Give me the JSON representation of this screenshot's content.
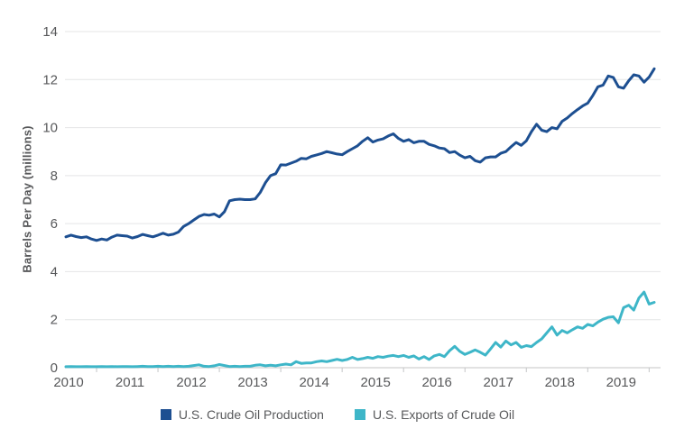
{
  "chart_data": {
    "type": "line",
    "title": "",
    "xlabel": "",
    "ylabel": "Barrels Per Day (millions)",
    "ylim": [
      0,
      14
    ],
    "y_ticks": [
      0,
      2,
      4,
      6,
      8,
      10,
      12,
      14
    ],
    "x_tick_labels": [
      "2010",
      "2011",
      "2012",
      "2013",
      "2014",
      "2015",
      "2016",
      "2017",
      "2018",
      "2019"
    ],
    "x_unit": "month",
    "x_range": "Jan 2010 - Aug 2019",
    "grid": "horizontal",
    "legend_position": "bottom-center",
    "series": [
      {
        "name": "U.S. Crude Oil Production",
        "color": "#1d4f91",
        "values": [
          5.45,
          5.52,
          5.46,
          5.42,
          5.45,
          5.36,
          5.3,
          5.36,
          5.32,
          5.44,
          5.52,
          5.5,
          5.48,
          5.4,
          5.46,
          5.55,
          5.5,
          5.45,
          5.52,
          5.6,
          5.52,
          5.56,
          5.65,
          5.88,
          6.0,
          6.15,
          6.3,
          6.38,
          6.35,
          6.4,
          6.28,
          6.5,
          6.95,
          7.0,
          7.02,
          7.0,
          7.0,
          7.03,
          7.3,
          7.7,
          8.0,
          8.08,
          8.45,
          8.44,
          8.52,
          8.6,
          8.72,
          8.7,
          8.8,
          8.86,
          8.92,
          9.0,
          8.95,
          8.9,
          8.87,
          9.0,
          9.12,
          9.24,
          9.43,
          9.58,
          9.4,
          9.48,
          9.53,
          9.65,
          9.74,
          9.55,
          9.43,
          9.5,
          9.37,
          9.43,
          9.43,
          9.3,
          9.24,
          9.15,
          9.12,
          8.96,
          9.0,
          8.85,
          8.74,
          8.8,
          8.62,
          8.56,
          8.74,
          8.78,
          8.78,
          8.93,
          9.0,
          9.2,
          9.38,
          9.26,
          9.45,
          9.83,
          10.14,
          9.89,
          9.83,
          10.0,
          9.95,
          10.26,
          10.4,
          10.59,
          10.75,
          10.9,
          11.02,
          11.34,
          11.7,
          11.77,
          12.15,
          12.09,
          11.7,
          11.64,
          11.95,
          12.2,
          12.15,
          11.89,
          12.1,
          12.45
        ]
      },
      {
        "name": "U.S. Exports of Crude Oil",
        "color": "#3eb6c8",
        "values": [
          0.04,
          0.05,
          0.04,
          0.04,
          0.05,
          0.04,
          0.04,
          0.05,
          0.04,
          0.05,
          0.04,
          0.05,
          0.05,
          0.04,
          0.05,
          0.06,
          0.05,
          0.05,
          0.06,
          0.05,
          0.06,
          0.05,
          0.06,
          0.05,
          0.06,
          0.09,
          0.12,
          0.06,
          0.05,
          0.08,
          0.13,
          0.09,
          0.05,
          0.06,
          0.05,
          0.06,
          0.06,
          0.1,
          0.12,
          0.08,
          0.1,
          0.08,
          0.12,
          0.15,
          0.12,
          0.25,
          0.18,
          0.2,
          0.2,
          0.25,
          0.28,
          0.25,
          0.3,
          0.35,
          0.3,
          0.34,
          0.43,
          0.34,
          0.38,
          0.43,
          0.39,
          0.46,
          0.43,
          0.48,
          0.51,
          0.46,
          0.51,
          0.43,
          0.49,
          0.36,
          0.46,
          0.34,
          0.49,
          0.55,
          0.46,
          0.71,
          0.89,
          0.68,
          0.55,
          0.64,
          0.74,
          0.64,
          0.52,
          0.78,
          1.05,
          0.86,
          1.11,
          0.95,
          1.05,
          0.85,
          0.92,
          0.88,
          1.05,
          1.2,
          1.45,
          1.7,
          1.36,
          1.55,
          1.45,
          1.58,
          1.7,
          1.64,
          1.8,
          1.74,
          1.9,
          2.02,
          2.1,
          2.12,
          1.87,
          2.5,
          2.6,
          2.4,
          2.9,
          3.15,
          2.65,
          2.72
        ]
      }
    ],
    "colors": {
      "grid": "#e4e5e6",
      "axis": "#c4c5c6",
      "tick_text": "#58595b"
    }
  }
}
